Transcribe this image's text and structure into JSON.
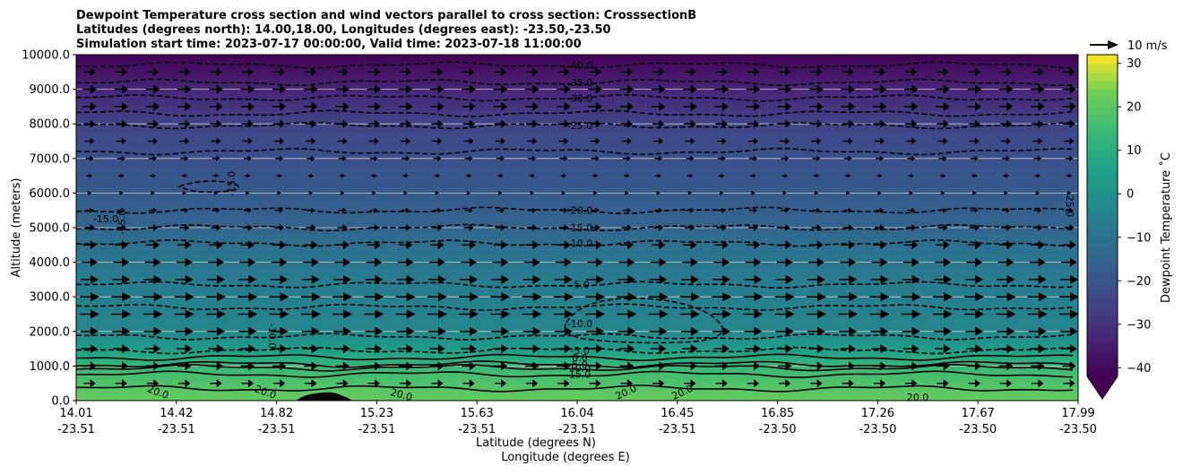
{
  "chart_data": {
    "type": "heatmap",
    "title_lines": [
      "Dewpoint Temperature cross section and wind vectors parallel to cross section: CrosssectionB",
      "Latitudes (degrees north): 14.00,18.00, Longitudes (degrees east): -23.50,-23.50",
      "Simulation start time: 2023-07-17 00:00:00, Valid time: 2023-07-18 11:00:00"
    ],
    "ylabel": "Altitude (meters)",
    "xlabel_lat": "Latitude (degrees N)",
    "xlabel_lon": "Longitude (degrees E)",
    "ylim": [
      0,
      10000
    ],
    "y_ticks": [
      "0.0",
      "1000.0",
      "2000.0",
      "3000.0",
      "4000.0",
      "5000.0",
      "6000.0",
      "7000.0",
      "8000.0",
      "9000.0",
      "10000.0"
    ],
    "x_ticks": [
      {
        "lat": "14.01",
        "lon": "-23.51"
      },
      {
        "lat": "14.42",
        "lon": "-23.51"
      },
      {
        "lat": "14.82",
        "lon": "-23.51"
      },
      {
        "lat": "15.23",
        "lon": "-23.51"
      },
      {
        "lat": "15.63",
        "lon": "-23.51"
      },
      {
        "lat": "16.04",
        "lon": "-23.51"
      },
      {
        "lat": "16.45",
        "lon": "-23.51"
      },
      {
        "lat": "16.85",
        "lon": "-23.50"
      },
      {
        "lat": "17.26",
        "lon": "-23.50"
      },
      {
        "lat": "17.67",
        "lon": "-23.50"
      },
      {
        "lat": "17.99",
        "lon": "-23.50"
      }
    ],
    "colorbar": {
      "label": "Dewpoint Temperature ˚C",
      "range": [
        -42,
        32
      ],
      "ticks": [
        "30",
        "20",
        "10",
        "0",
        "−10",
        "−20",
        "−30",
        "−40"
      ],
      "colormap": "viridis",
      "extend": "min"
    },
    "dewpoint_profile": [
      {
        "altitude": 0,
        "value": 22
      },
      {
        "altitude": 500,
        "value": 18
      },
      {
        "altitude": 1000,
        "value": 14
      },
      {
        "altitude": 1500,
        "value": 4
      },
      {
        "altitude": 2000,
        "value": -3
      },
      {
        "altitude": 2500,
        "value": -5
      },
      {
        "altitude": 3000,
        "value": -6
      },
      {
        "altitude": 3500,
        "value": -7
      },
      {
        "altitude": 4000,
        "value": -9
      },
      {
        "altitude": 4500,
        "value": -11
      },
      {
        "altitude": 5000,
        "value": -15
      },
      {
        "altitude": 6000,
        "value": -18
      },
      {
        "altitude": 7000,
        "value": -21
      },
      {
        "altitude": 8000,
        "value": -25
      },
      {
        "altitude": 8500,
        "value": -29
      },
      {
        "altitude": 9000,
        "value": -33
      },
      {
        "altitude": 9500,
        "value": -37
      },
      {
        "altitude": 10000,
        "value": -42
      }
    ],
    "contour_labels": [
      {
        "text": "-40.0",
        "altitude": 9700
      },
      {
        "text": "-35.0",
        "altitude": 9200
      },
      {
        "text": "-30.0",
        "altitude": 8750
      },
      {
        "text": "-25.0",
        "altitude": 7950
      },
      {
        "text": "-20.0",
        "altitude": 5500
      },
      {
        "text": "-15.0",
        "altitude": 5000
      },
      {
        "text": "-10.0",
        "altitude": 4550
      },
      {
        "text": "-5.0",
        "altitude": 3350
      },
      {
        "text": "-10.0",
        "altitude": 2230
      },
      {
        "text": "-5.0",
        "altitude": 1450
      },
      {
        "text": "0.0",
        "altitude": 1250
      },
      {
        "text": "5.0",
        "altitude": 1050
      },
      {
        "text": "10.0",
        "altitude": 950
      },
      {
        "text": "15.0",
        "altitude": 760
      }
    ],
    "side_labels": [
      "-15.0",
      "-15.0",
      "-15.0",
      "-25.0",
      "-10.0",
      "20.0",
      "20.0",
      "20.0",
      "20.0",
      "20.0",
      "20.0"
    ],
    "wind": {
      "reference_label": "10 m/s",
      "direction": "parallel to cross section, toward increasing latitude",
      "levels": [
        {
          "altitude": 9500,
          "speed": 6
        },
        {
          "altitude": 9000,
          "speed": 7
        },
        {
          "altitude": 8500,
          "speed": 7
        },
        {
          "altitude": 8000,
          "speed": 6
        },
        {
          "altitude": 7500,
          "speed": 5
        },
        {
          "altitude": 7000,
          "speed": 4
        },
        {
          "altitude": 6500,
          "speed": 3
        },
        {
          "altitude": 6000,
          "speed": 2
        },
        {
          "altitude": 5500,
          "speed": 4
        },
        {
          "altitude": 5000,
          "speed": 5
        },
        {
          "altitude": 4500,
          "speed": 7
        },
        {
          "altitude": 4000,
          "speed": 8
        },
        {
          "altitude": 3500,
          "speed": 9
        },
        {
          "altitude": 3000,
          "speed": 10
        },
        {
          "altitude": 2500,
          "speed": 10
        },
        {
          "altitude": 2000,
          "speed": 9
        },
        {
          "altitude": 1500,
          "speed": 8
        },
        {
          "altitude": 1000,
          "speed": 7
        },
        {
          "altitude": 500,
          "speed": 6
        }
      ]
    }
  }
}
